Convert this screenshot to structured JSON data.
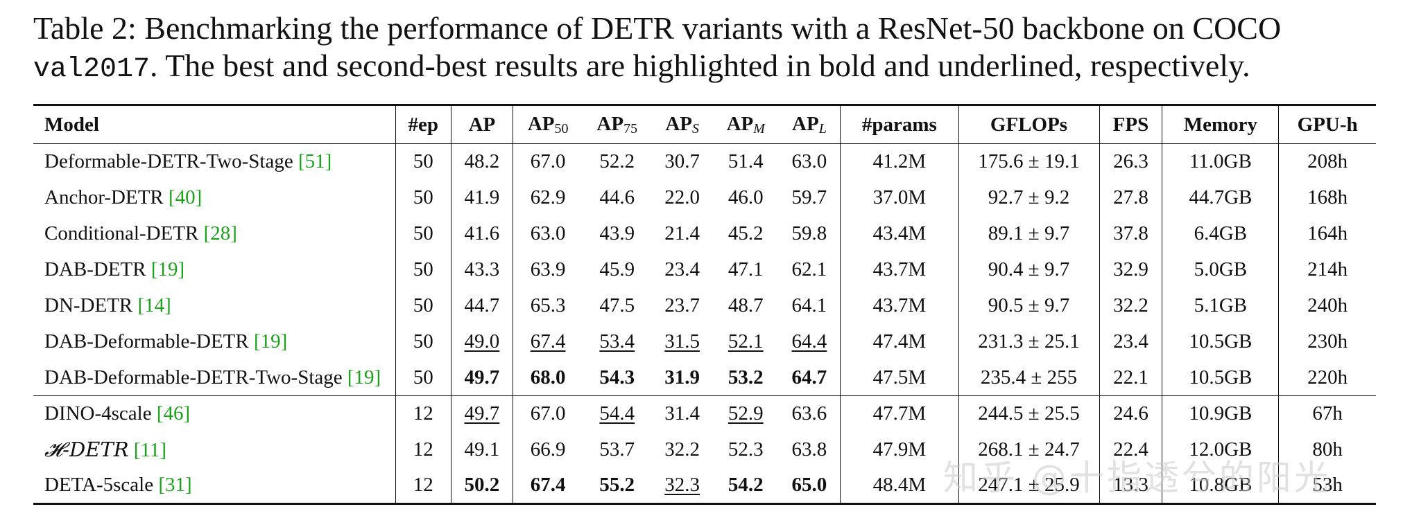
{
  "caption": {
    "prefix": "Table 2: Benchmarking the performance of DETR variants with a ResNet-50 backbone on COCO",
    "split": "val2017",
    "suffix": ". The best and second-best results are highlighted in bold and underlined, respectively."
  },
  "header": {
    "model": "Model",
    "ep": "#ep",
    "ap": "AP",
    "ap50_base": "AP",
    "ap50_sub": "50",
    "ap75_base": "AP",
    "ap75_sub": "75",
    "aps_base": "AP",
    "aps_sub": "S",
    "apm_base": "AP",
    "apm_sub": "M",
    "apl_base": "AP",
    "apl_sub": "L",
    "params": "#params",
    "gflops": "GFLOPs",
    "fps": "FPS",
    "memory": "Memory",
    "gpuh": "GPU-h"
  },
  "rows": [
    {
      "model": "Deformable-DETR-Two-Stage",
      "ref": "[51]",
      "ep": "50",
      "ap": "48.2",
      "ap50": "67.0",
      "ap75": "52.2",
      "aps": "30.7",
      "apm": "51.4",
      "apl": "63.0",
      "params": "41.2M",
      "gflops": "175.6 ± 19.1",
      "fps": "26.3",
      "memory": "11.0GB",
      "gpuh": "208h"
    },
    {
      "model": "Anchor-DETR",
      "ref": "[40]",
      "ep": "50",
      "ap": "41.9",
      "ap50": "62.9",
      "ap75": "44.6",
      "aps": "22.0",
      "apm": "46.0",
      "apl": "59.7",
      "params": "37.0M",
      "gflops": "92.7 ± 9.2",
      "fps": "27.8",
      "memory": "44.7GB",
      "gpuh": "168h"
    },
    {
      "model": "Conditional-DETR",
      "ref": "[28]",
      "ep": "50",
      "ap": "41.6",
      "ap50": "63.0",
      "ap75": "43.9",
      "aps": "21.4",
      "apm": "45.2",
      "apl": "59.8",
      "params": "43.4M",
      "gflops": "89.1 ± 9.7",
      "fps": "37.8",
      "memory": "6.4GB",
      "gpuh": "164h"
    },
    {
      "model": "DAB-DETR",
      "ref": "[19]",
      "ep": "50",
      "ap": "43.3",
      "ap50": "63.9",
      "ap75": "45.9",
      "aps": "23.4",
      "apm": "47.1",
      "apl": "62.1",
      "params": "43.7M",
      "gflops": "90.4 ± 9.7",
      "fps": "32.9",
      "memory": "5.0GB",
      "gpuh": "214h"
    },
    {
      "model": "DN-DETR",
      "ref": "[14]",
      "ep": "50",
      "ap": "44.7",
      "ap50": "65.3",
      "ap75": "47.5",
      "aps": "23.7",
      "apm": "48.7",
      "apl": "64.1",
      "params": "43.7M",
      "gflops": "90.5 ± 9.7",
      "fps": "32.2",
      "memory": "5.1GB",
      "gpuh": "240h"
    },
    {
      "model": "DAB-Deformable-DETR",
      "ref": "[19]",
      "ep": "50",
      "ap": "49.0",
      "ap50": "67.4",
      "ap75": "53.4",
      "aps": "31.5",
      "apm": "52.1",
      "apl": "64.4",
      "params": "47.4M",
      "gflops": "231.3 ± 25.1",
      "fps": "23.4",
      "memory": "10.5GB",
      "gpuh": "230h"
    },
    {
      "model": "DAB-Deformable-DETR-Two-Stage",
      "ref": "[19]",
      "ep": "50",
      "ap": "49.7",
      "ap50": "68.0",
      "ap75": "54.3",
      "aps": "31.9",
      "apm": "53.2",
      "apl": "64.7",
      "params": "47.5M",
      "gflops": "235.4 ± 255",
      "fps": "22.1",
      "memory": "10.5GB",
      "gpuh": "220h"
    },
    {
      "model": "DINO-4scale",
      "ref": "[46]",
      "ep": "12",
      "ap": "49.7",
      "ap50": "67.0",
      "ap75": "54.4",
      "aps": "31.4",
      "apm": "52.9",
      "apl": "63.6",
      "params": "47.7M",
      "gflops": "244.5 ± 25.5",
      "fps": "24.6",
      "memory": "10.9GB",
      "gpuh": "67h"
    },
    {
      "model": "𝓗-DETR",
      "ref": "[11]",
      "ep": "12",
      "ap": "49.1",
      "ap50": "66.9",
      "ap75": "53.7",
      "aps": "32.2",
      "apm": "52.3",
      "apl": "63.8",
      "params": "47.9M",
      "gflops": "268.1 ± 24.7",
      "fps": "22.4",
      "memory": "12.0GB",
      "gpuh": "80h"
    },
    {
      "model": "DETA-5scale",
      "ref": "[31]",
      "ep": "12",
      "ap": "50.2",
      "ap50": "67.4",
      "ap75": "55.2",
      "aps": "32.3",
      "apm": "54.2",
      "apl": "65.0",
      "params": "48.4M",
      "gflops": "247.1 ± 25.9",
      "fps": "13.3",
      "memory": "10.8GB",
      "gpuh": "53h"
    }
  ],
  "watermark": "知乎 @十指透兮的阳光"
}
